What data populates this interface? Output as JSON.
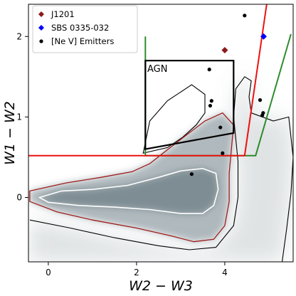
{
  "chart_data": {
    "type": "scatter",
    "xlabel": "W2 − W3",
    "ylabel": "W1 − W2",
    "xlim": [
      -0.45,
      5.55
    ],
    "ylim": [
      -0.8,
      2.4
    ],
    "xticks": [
      0,
      2,
      4
    ],
    "yticks": [
      0,
      1,
      2
    ],
    "legend_position": "top-left",
    "region_label": "AGN",
    "colors": {
      "j1201": "#8b1a1a",
      "sbs": "#0000ff",
      "nev": "#000000",
      "red_boundary": "#ee1111",
      "green_boundary": "#2e8b2e",
      "agn_box": "#000000",
      "contour_outer": "#000000",
      "contour_mid": "#a01c1c",
      "contour_inner": "#ffffff",
      "density": "#6e7f86"
    },
    "series": [
      {
        "name": "J1201",
        "marker": "diamond",
        "color": "#8b1a1a",
        "points": [
          [
            4.0,
            1.83
          ]
        ]
      },
      {
        "name": "SBS 0335-032",
        "marker": "diamond",
        "color": "#0000ff",
        "points": [
          [
            4.88,
            2.0
          ]
        ]
      },
      {
        "name": "[Ne V] Emitters",
        "marker": "circle",
        "color": "#000000",
        "points": [
          [
            4.45,
            2.26
          ],
          [
            3.65,
            1.59
          ],
          [
            3.7,
            1.2
          ],
          [
            3.67,
            1.14
          ],
          [
            4.8,
            1.21
          ],
          [
            4.87,
            1.05
          ],
          [
            4.85,
            1.02
          ],
          [
            3.9,
            0.87
          ],
          [
            3.95,
            0.55
          ],
          [
            3.25,
            0.29
          ]
        ]
      }
    ],
    "boundaries": {
      "red": [
        [
          -0.45,
          0.52
        ],
        [
          4.45,
          0.52
        ],
        [
          4.95,
          2.4
        ]
      ],
      "green": [
        [
          2.2,
          2.0
        ],
        [
          2.2,
          0.52
        ],
        [
          4.7,
          0.52
        ],
        [
          5.5,
          2.03
        ]
      ],
      "agn_box": [
        [
          2.2,
          1.7
        ],
        [
          4.2,
          1.7
        ],
        [
          4.2,
          0.8
        ],
        [
          2.2,
          0.6
        ]
      ]
    },
    "contours": {
      "outer": [
        [
          -0.42,
          -0.28
        ],
        [
          0.5,
          -0.38
        ],
        [
          1.5,
          -0.5
        ],
        [
          2.5,
          -0.6
        ],
        [
          3.2,
          -0.65
        ],
        [
          3.8,
          -0.62
        ],
        [
          4.2,
          -0.35
        ],
        [
          4.3,
          0.0
        ],
        [
          4.3,
          0.45
        ],
        [
          4.2,
          1.0
        ],
        [
          4.25,
          1.35
        ],
        [
          4.45,
          1.5
        ],
        [
          4.6,
          1.45
        ],
        [
          4.55,
          1.25
        ],
        [
          4.6,
          1.05
        ],
        [
          5.1,
          0.95
        ],
        [
          5.45,
          1.0
        ],
        [
          5.55,
          0.5
        ],
        [
          5.5,
          0.05
        ],
        [
          5.4,
          -0.4
        ],
        [
          5.3,
          -0.8
        ]
      ],
      "outer_loop": [
        [
          2.15,
          0.55
        ],
        [
          2.3,
          0.95
        ],
        [
          2.7,
          1.2
        ],
        [
          3.25,
          1.4
        ],
        [
          3.55,
          1.28
        ],
        [
          3.55,
          1.05
        ],
        [
          3.35,
          0.9
        ],
        [
          3.05,
          0.75
        ],
        [
          2.7,
          0.62
        ]
      ],
      "mid": [
        [
          -0.42,
          -0.05
        ],
        [
          0.2,
          -0.18
        ],
        [
          1.0,
          -0.28
        ],
        [
          2.0,
          -0.38
        ],
        [
          2.8,
          -0.48
        ],
        [
          3.3,
          -0.55
        ],
        [
          3.75,
          -0.52
        ],
        [
          4.0,
          -0.35
        ],
        [
          4.1,
          -0.05
        ],
        [
          4.1,
          0.3
        ],
        [
          4.2,
          0.9
        ],
        [
          3.95,
          1.05
        ],
        [
          3.55,
          0.95
        ],
        [
          3.0,
          0.72
        ],
        [
          2.6,
          0.55
        ],
        [
          2.3,
          0.42
        ],
        [
          1.9,
          0.32
        ],
        [
          1.2,
          0.25
        ],
        [
          0.4,
          0.18
        ],
        [
          -0.42,
          0.08
        ]
      ],
      "inner": [
        [
          -0.2,
          0.0
        ],
        [
          0.3,
          0.08
        ],
        [
          1.0,
          0.1
        ],
        [
          1.8,
          0.15
        ],
        [
          2.5,
          0.25
        ],
        [
          3.0,
          0.33
        ],
        [
          3.5,
          0.36
        ],
        [
          3.8,
          0.3
        ],
        [
          3.85,
          0.1
        ],
        [
          3.75,
          -0.1
        ],
        [
          3.5,
          -0.2
        ],
        [
          3.0,
          -0.2
        ],
        [
          2.3,
          -0.15
        ],
        [
          1.5,
          -0.12
        ],
        [
          0.7,
          -0.1
        ],
        [
          0.0,
          -0.06
        ]
      ]
    }
  }
}
